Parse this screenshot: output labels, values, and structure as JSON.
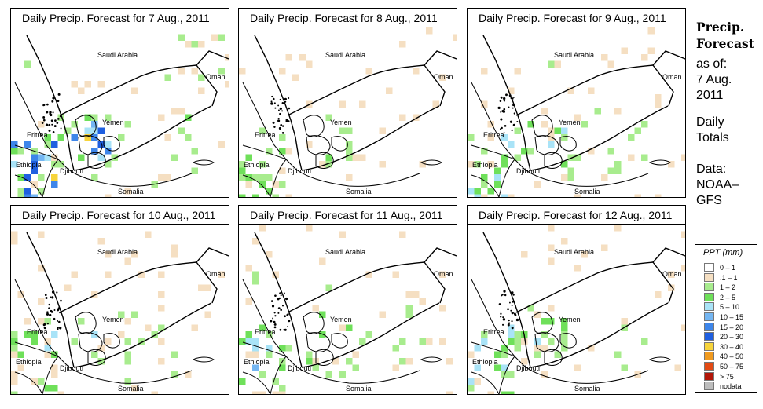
{
  "panels": [
    {
      "title": "Daily Precip. Forecast for  7 Aug., 2011",
      "intensity": 1.0
    },
    {
      "title": "Daily Precip. Forecast for  8 Aug., 2011",
      "intensity": 0.5
    },
    {
      "title": "Daily Precip. Forecast for  9 Aug., 2011",
      "intensity": 0.7
    },
    {
      "title": "Daily Precip. Forecast for  10 Aug., 2011",
      "intensity": 0.55
    },
    {
      "title": "Daily Precip. Forecast for  11 Aug., 2011",
      "intensity": 0.75
    },
    {
      "title": "Daily Precip. Forecast for  12 Aug., 2011",
      "intensity": 0.6
    }
  ],
  "map_labels": {
    "saudi_arabia": "Saudi Arabia",
    "oman": "Oman",
    "yemen": "Yemen",
    "eritrea": "Eritrea",
    "ethiopia": "Ethiopia",
    "djibouti": "Djibouti",
    "somalia": "Somalia"
  },
  "side": {
    "title_line1": "Precip.",
    "title_line2": "Forecast",
    "asof": "as of:",
    "date_line1": "7 Aug.",
    "date_line2": "2011",
    "totals_line1": "Daily",
    "totals_line2": "Totals",
    "data_line1": "Data:",
    "data_line2": "NOAA–",
    "data_line3": "GFS"
  },
  "legend": {
    "title": "PPT (mm)",
    "items": [
      {
        "label": "0 – 1",
        "color": "#ffffff"
      },
      {
        "label": ".1 – 1",
        "color": "#f5dfc2"
      },
      {
        "label": "1 – 2",
        "color": "#a8ec8e"
      },
      {
        "label": "2 – 5",
        "color": "#6fe05a"
      },
      {
        "label": "5 – 10",
        "color": "#a9e3f7"
      },
      {
        "label": "10 – 15",
        "color": "#74b6f2"
      },
      {
        "label": "15 – 20",
        "color": "#3e86ea"
      },
      {
        "label": "20 – 30",
        "color": "#1f5fe0"
      },
      {
        "label": "30 – 40",
        "color": "#f7d43b"
      },
      {
        "label": "40 – 50",
        "color": "#f09a1f"
      },
      {
        "label": "50 – 75",
        "color": "#e34a14"
      },
      {
        "label": "> 75",
        "color": "#b21608"
      },
      {
        "label": "nodata",
        "color": "#bdbdbd"
      }
    ]
  }
}
